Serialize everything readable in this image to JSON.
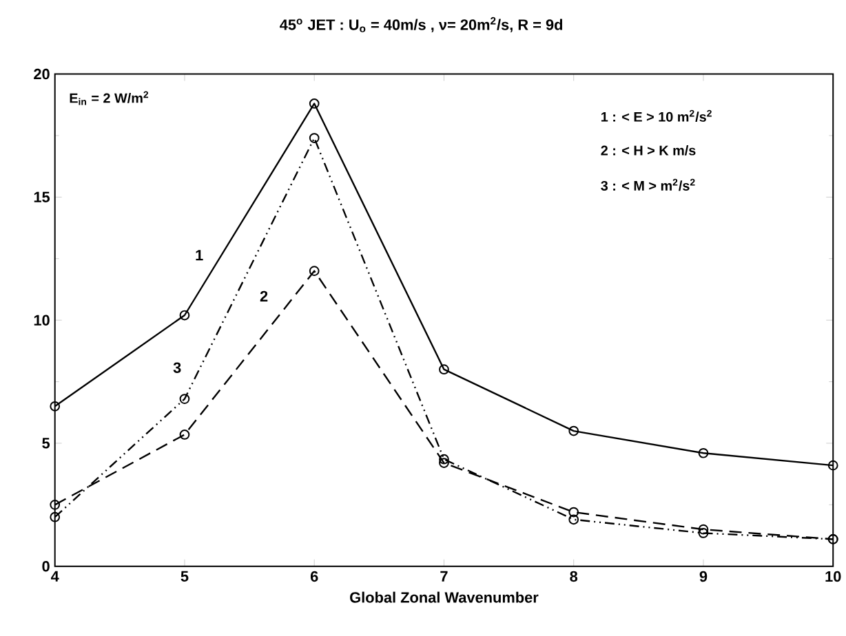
{
  "chart_data": {
    "type": "line",
    "title": "45$^{o}$ JET : U$_{o}$ = 40m/s , ν= 20m$^{2}$/s, R = 9d",
    "xlabel": "Global  Zonal  Wavenumber",
    "x": [
      4,
      5,
      6,
      7,
      8,
      9,
      10
    ],
    "series": [
      {
        "name": "1",
        "color": "#000000",
        "line_style": "solid",
        "values": [
          6.5,
          10.2,
          18.8,
          8.0,
          5.5,
          4.6,
          4.1
        ]
      },
      {
        "name": "2",
        "color": "#000000",
        "line_style": "dashed",
        "values": [
          2.5,
          5.35,
          12.0,
          4.2,
          2.2,
          1.5,
          1.1
        ]
      },
      {
        "name": "3",
        "color": "#000000",
        "line_style": "dotted",
        "values": [
          2.0,
          6.8,
          17.4,
          4.35,
          1.9,
          1.35,
          1.1
        ]
      }
    ],
    "marker": "circle",
    "grid": false,
    "xlim": [
      4,
      10
    ],
    "ylim": [
      0,
      20
    ],
    "xticks": [
      4,
      5,
      6,
      7,
      8,
      9,
      10
    ],
    "yticks": [
      0,
      5,
      10,
      15,
      20
    ],
    "annotations": [
      "E$_{in}$ = 2 W/m$^{2}$",
      "1 : < E >  10 m$^{2}$/s$^{2}$",
      "2 : < H >   K m/s",
      "3 : < M >   m$^{2}$/s$^{2}$"
    ]
  }
}
